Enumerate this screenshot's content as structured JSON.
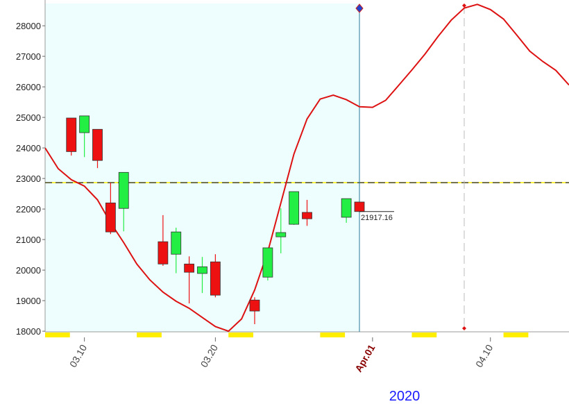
{
  "chart_data": {
    "type": "candlestick",
    "x": [
      "2020-03-09",
      "2020-03-10",
      "2020-03-11",
      "2020-03-12",
      "2020-03-13",
      "2020-03-16",
      "2020-03-17",
      "2020-03-18",
      "2020-03-19",
      "2020-03-20",
      "2020-03-23",
      "2020-03-24",
      "2020-03-25",
      "2020-03-26",
      "2020-03-27",
      "2020-03-30",
      "2020-03-31"
    ],
    "open": [
      24980,
      24500,
      24610,
      22200,
      22020,
      20930,
      20520,
      20200,
      19890,
      20270,
      19020,
      19770,
      21090,
      21500,
      21890,
      21730,
      22230
    ],
    "high": [
      24980,
      25050,
      24610,
      22860,
      23200,
      21800,
      21390,
      20450,
      20430,
      20520,
      19110,
      20730,
      22020,
      22570,
      22300,
      22340,
      22230
    ],
    "low": [
      23750,
      23700,
      23340,
      21180,
      21270,
      20140,
      19900,
      18910,
      19250,
      19110,
      18230,
      19660,
      20550,
      21480,
      21450,
      21550,
      21917.16
    ],
    "close": [
      23880,
      25050,
      23590,
      21250,
      23200,
      20200,
      21250,
      19930,
      20110,
      19180,
      18660,
      20730,
      21230,
      22570,
      21680,
      22340,
      21917.16
    ],
    "up_color": "#22ee44",
    "down_color": "#ee1111",
    "line": {
      "color": "#dd1111",
      "x": [
        "2020-03-07",
        "2020-03-08",
        "2020-03-09",
        "2020-03-10",
        "2020-03-11",
        "2020-03-12",
        "2020-03-13",
        "2020-03-14",
        "2020-03-15",
        "2020-03-16",
        "2020-03-17",
        "2020-03-18",
        "2020-03-19",
        "2020-03-20",
        "2020-03-21",
        "2020-03-22",
        "2020-03-23",
        "2020-03-24",
        "2020-03-25",
        "2020-03-26",
        "2020-03-27",
        "2020-03-28",
        "2020-03-29",
        "2020-03-30",
        "2020-03-31",
        "2020-04-01",
        "2020-04-02",
        "2020-04-03",
        "2020-04-04",
        "2020-04-05",
        "2020-04-06",
        "2020-04-07",
        "2020-04-08",
        "2020-04-09",
        "2020-04-10",
        "2020-04-11",
        "2020-04-12",
        "2020-04-13",
        "2020-04-14",
        "2020-04-15",
        "2020-04-16"
      ],
      "values": [
        24000,
        23320,
        22960,
        22750,
        22300,
        21550,
        20900,
        20200,
        19680,
        19280,
        18980,
        18750,
        18450,
        18150,
        18000,
        18400,
        19350,
        20600,
        22200,
        23800,
        24950,
        25600,
        25730,
        25580,
        25350,
        25330,
        25560,
        26050,
        26550,
        27070,
        27650,
        28180,
        28580,
        28700,
        28530,
        28220,
        27700,
        27170,
        26830,
        26540,
        26060
      ]
    },
    "hline": 22864,
    "vline": "2020-04-08",
    "ylim": [
      17980,
      28730
    ],
    "yticks": [
      18000,
      19000,
      20000,
      21000,
      22000,
      23000,
      24000,
      25000,
      26000,
      27000,
      28000
    ],
    "xlim": [
      "2020-03-07",
      "2020-04-16"
    ],
    "xticks": [
      {
        "value": "2020-03-10",
        "label": "03.10"
      },
      {
        "value": "2020-03-20",
        "label": "03.20"
      },
      {
        "value": "2020-04-01",
        "label": "Apr.01"
      },
      {
        "value": "2020-04-10",
        "label": "04.10"
      }
    ],
    "x_axis_label": "2020"
  }
}
